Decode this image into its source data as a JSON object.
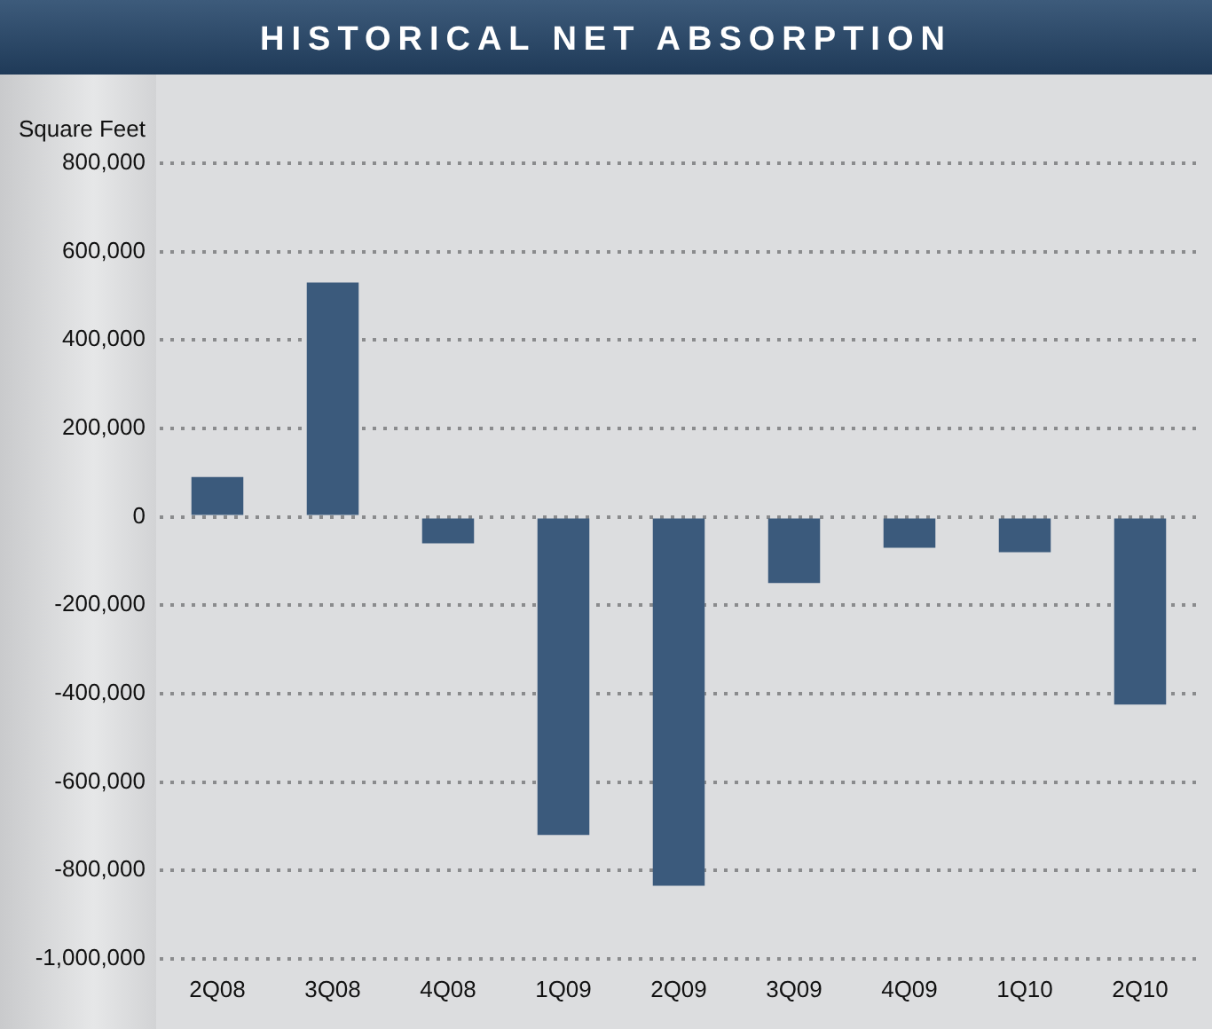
{
  "chart_data": {
    "type": "bar",
    "title": "HISTORICAL NET ABSORPTION",
    "ylabel": "Square Feet",
    "categories": [
      "2Q08",
      "3Q08",
      "4Q08",
      "1Q09",
      "2Q09",
      "3Q09",
      "4Q09",
      "1Q10",
      "2Q10"
    ],
    "values": [
      90000,
      530000,
      -60000,
      -720000,
      -835000,
      -150000,
      -70000,
      -80000,
      -425000
    ],
    "color": "#3b5a7c",
    "ylim": [
      -1000000,
      800000
    ],
    "yticks": [
      {
        "value": -1000000,
        "label": "-1,000,000"
      },
      {
        "value": -800000,
        "label": "-800,000"
      },
      {
        "value": -600000,
        "label": "-600,000"
      },
      {
        "value": -400000,
        "label": "-400,000"
      },
      {
        "value": -200000,
        "label": "-200,000"
      },
      0,
      {
        "value": 200000,
        "label": "200,000"
      },
      {
        "value": 400000,
        "label": "400,000"
      },
      {
        "value": 600000,
        "label": "600,000"
      },
      {
        "value": 800000,
        "label": "800,000"
      }
    ],
    "grid": "y",
    "legend": false
  }
}
